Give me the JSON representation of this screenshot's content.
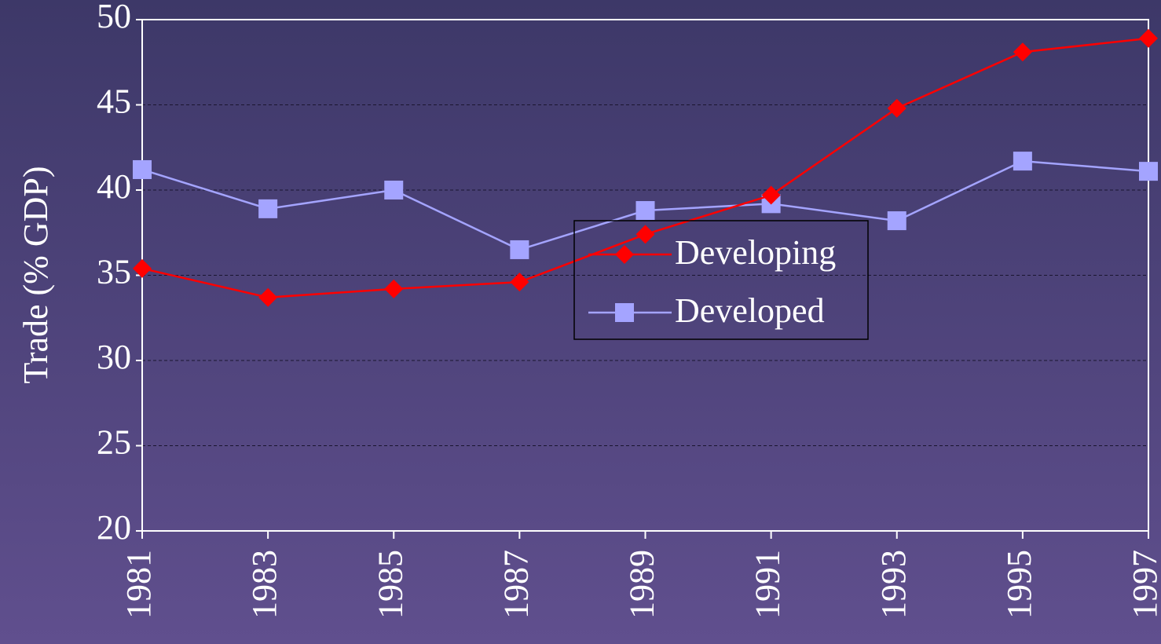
{
  "chart_data": {
    "type": "line",
    "y_label": "Trade (% GDP)",
    "categories": [
      "1981",
      "1983",
      "1985",
      "1987",
      "1989",
      "1991",
      "1993",
      "1995",
      "1997"
    ],
    "series": [
      {
        "name": "Developing",
        "color": "#ff0000",
        "marker": "diamond",
        "values": [
          35.4,
          33.7,
          34.2,
          34.6,
          37.4,
          39.7,
          44.8,
          48.1,
          48.9
        ]
      },
      {
        "name": "Developed",
        "color": "#a4a4ff",
        "marker": "square",
        "values": [
          41.2,
          38.9,
          40.0,
          36.5,
          38.8,
          39.2,
          38.2,
          41.7,
          41.1
        ]
      }
    ],
    "ylim": [
      20,
      50
    ],
    "yticks": [
      20,
      25,
      30,
      35,
      40,
      45,
      50
    ],
    "grid": true
  }
}
